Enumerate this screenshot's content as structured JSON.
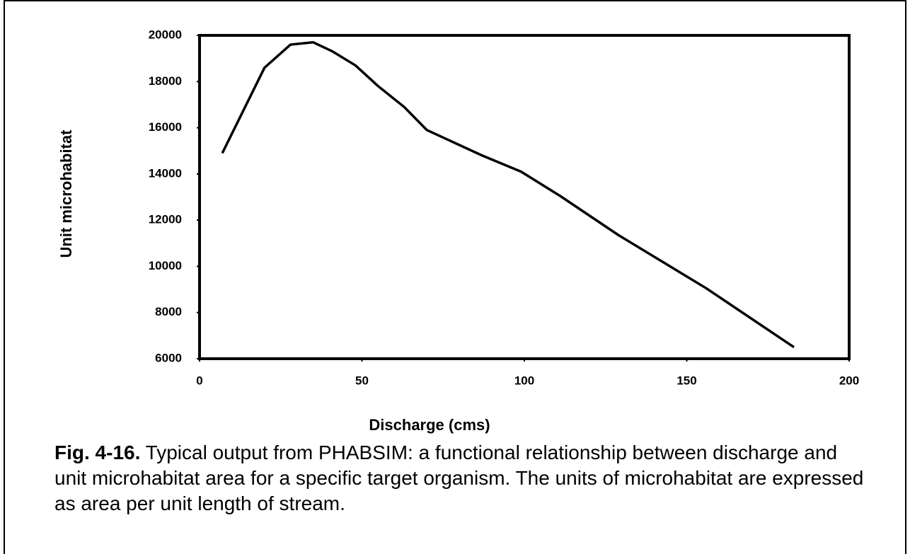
{
  "chart_data": {
    "type": "line",
    "x_label": "Discharge (cms)",
    "y_label": "Unit microhabitat",
    "caption_label": "Fig. 4-16.",
    "caption": "Typical output from PHABSIM: a functional relationship between discharge and unit microhabitat area for a specific target organism. The units of microhabitat are expressed as area per unit length of stream.",
    "x": [
      7,
      20,
      28,
      35,
      41,
      48,
      55,
      63,
      70,
      87,
      99,
      111,
      129,
      156,
      183
    ],
    "values": [
      14900,
      18600,
      19600,
      19700,
      19300,
      18700,
      17800,
      16900,
      15900,
      14800,
      14100,
      13050,
      11350,
      9050,
      6500
    ],
    "color": "#000000",
    "xlim": [
      0,
      200
    ],
    "xticks": [
      0,
      50,
      100,
      150,
      200
    ],
    "ylim": [
      6000,
      20000
    ],
    "yticks": [
      6000,
      8000,
      10000,
      12000,
      14000,
      16000,
      18000,
      20000
    ],
    "grid": false
  }
}
